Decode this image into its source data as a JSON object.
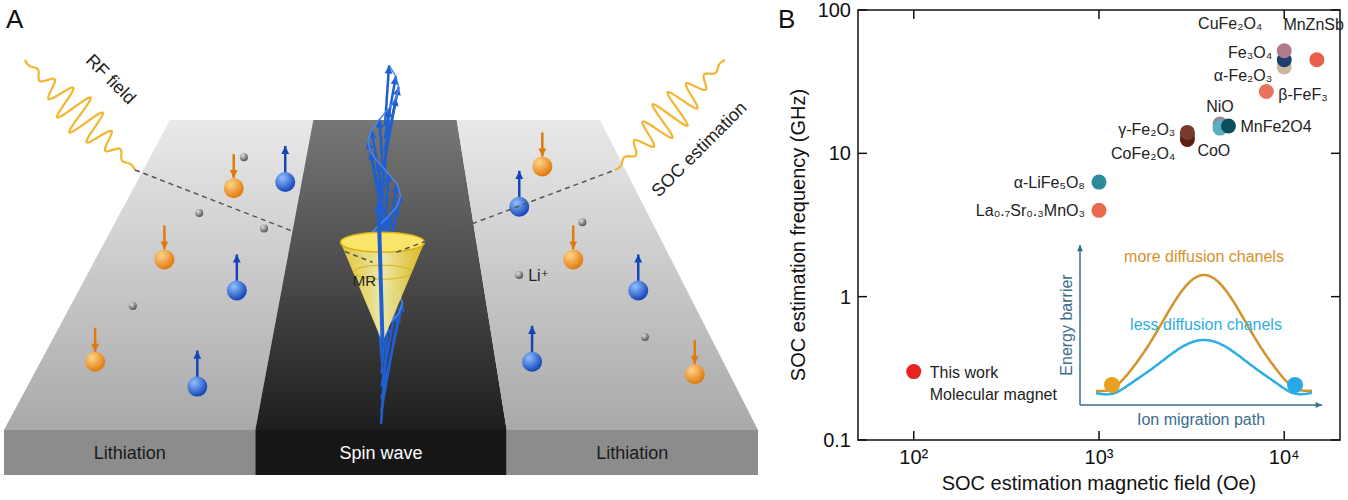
{
  "diagram": {
    "panel_label": "A",
    "rf_field": "RF field",
    "soc_estimation": "SOC estimation",
    "mr": "MR",
    "li_ion": "Li⁺",
    "regions": [
      "Lithiation",
      "Spin wave",
      "Lithiation"
    ]
  },
  "chart_data": {
    "type": "scatter",
    "panel_label": "B",
    "x_label": "SOC estimation magnetic field (Oe)",
    "y_label": "SOC estimation frequency (GHz)",
    "log": true,
    "grid": false,
    "marker": "circle",
    "xlim": [
      50,
      20000
    ],
    "xticks": [
      {
        "value": 100,
        "label": "10²"
      },
      {
        "value": 1000,
        "label": "10³"
      },
      {
        "value": 10000,
        "label": "10⁴"
      }
    ],
    "ylim": [
      0.1,
      100
    ],
    "yticks": [
      0.1,
      1,
      10,
      100
    ],
    "series": [
      {
        "name": "This work",
        "color": "#e8231f",
        "x": [
          100
        ],
        "values": [
          0.3
        ]
      },
      {
        "name": "La₀.₇Sr₀.₃MnO₃",
        "color": "#e8694b",
        "x": [
          1000
        ],
        "values": [
          4
        ]
      },
      {
        "name": "α-LiFe₅O₈",
        "color": "#2b8a9b",
        "x": [
          1000
        ],
        "values": [
          6.3
        ]
      },
      {
        "name": "γ-Fe₂O₃",
        "color": "#0f5e66",
        "x": [
          3000
        ],
        "values": [
          13.5
        ]
      },
      {
        "name": "CoFe₂O₄",
        "color": "#5c1d14",
        "x": [
          3000
        ],
        "values": [
          12.5
        ]
      },
      {
        "name": "CoO",
        "color": "#7a3a2a",
        "x": [
          3000
        ],
        "values": [
          14
        ]
      },
      {
        "name": "NiO",
        "color": "#8e8c9e",
        "x": [
          4500
        ],
        "values": [
          16
        ]
      },
      {
        "name": null,
        "color": "#58b0c0",
        "x": [
          4500
        ],
        "values": [
          15
        ]
      },
      {
        "name": "MnFe2O4",
        "color": "#0b4f5c",
        "x": [
          5000
        ],
        "values": [
          15.5
        ]
      },
      {
        "name": "β-FeF₃",
        "color": "#ea735e",
        "x": [
          8000
        ],
        "values": [
          27
        ]
      },
      {
        "name": "α-Fe₂O₃",
        "color": "#cbb89e",
        "x": [
          10000
        ],
        "values": [
          40
        ]
      },
      {
        "name": "Fe₃O₄",
        "color": "#1d3f70",
        "x": [
          10000
        ],
        "values": [
          45
        ]
      },
      {
        "name": "CuFe₂O₄",
        "color": "#b07a8c",
        "x": [
          10000
        ],
        "values": [
          52
        ]
      },
      {
        "name": "MnZnSb",
        "color": "#e8604a",
        "x": [
          15000
        ],
        "values": [
          45
        ]
      }
    ],
    "annotations": [
      "Molecular magnet"
    ],
    "inset": {
      "y_label": "Energy barrier",
      "x_label": "Ion migration path",
      "curves": [
        "more diffusion chanels",
        "less diffusion chanels"
      ]
    }
  }
}
